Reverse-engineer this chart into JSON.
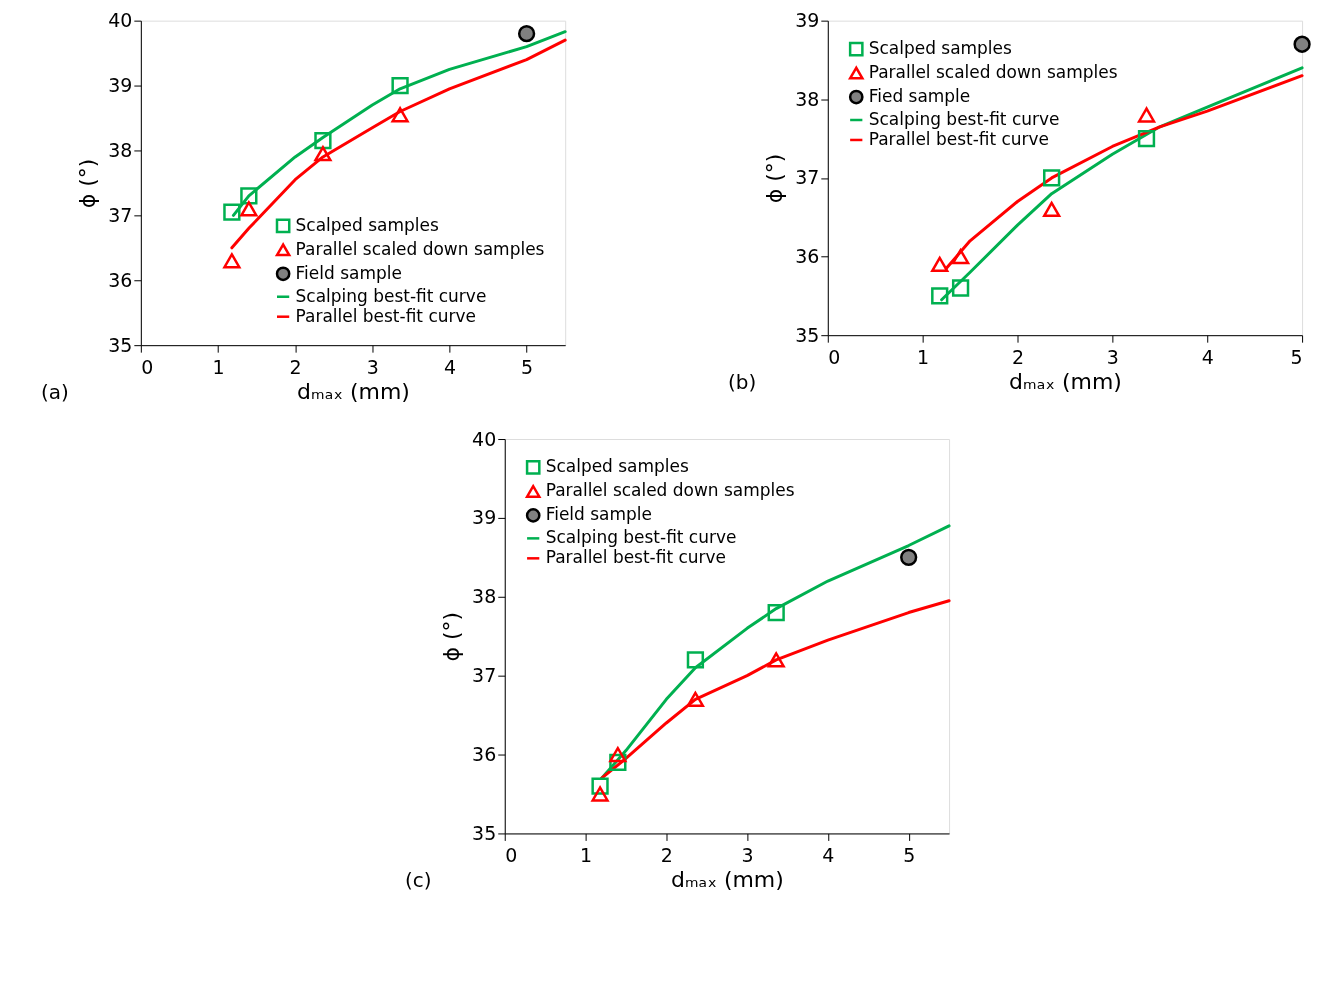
{
  "chart_data": [
    {
      "type": "scatter",
      "xlabel": "dₘₐₓ (mm)",
      "ylabel": "ϕ (°)",
      "xlim": [
        0,
        5.5
      ],
      "xticks": [
        0,
        1,
        2,
        3,
        4,
        5
      ],
      "ylim": [
        35,
        40
      ],
      "yticks": [
        35,
        36,
        37,
        38,
        39,
        40
      ],
      "grid": false,
      "legend": "bottom right",
      "annotations": [
        "(a)"
      ],
      "series": [
        {
          "name": "Scalped samples",
          "marker": "square",
          "color": "#00b050",
          "x": [
            1.18,
            1.4,
            2.36,
            3.36
          ],
          "values": [
            37.05,
            37.3,
            38.15,
            39.0
          ]
        },
        {
          "name": "Parallel scaled down samples",
          "marker": "triangle",
          "color": "#ff0000",
          "x": [
            1.18,
            1.4,
            2.36,
            3.36
          ],
          "values": [
            36.3,
            37.1,
            37.95,
            38.55
          ]
        },
        {
          "name": "Field sample",
          "marker": "circle",
          "color": "#808080",
          "x": [
            5
          ],
          "values": [
            39.8
          ]
        },
        {
          "name": "Scalping best-fit curve",
          "type": "line",
          "line_style": "solid",
          "color": "#00b050",
          "x": [
            1.2,
            1.4,
            2,
            2.36,
            3,
            3.36,
            4,
            5,
            5.5
          ],
          "values": [
            37.0,
            37.3,
            37.9,
            38.2,
            38.7,
            38.95,
            39.25,
            39.6,
            39.83
          ]
        },
        {
          "name": "Parallel best-fit curve",
          "type": "line",
          "line_style": "solid",
          "color": "#ff0000",
          "x": [
            1.18,
            1.4,
            2,
            2.36,
            3,
            3.36,
            4,
            5,
            5.5
          ],
          "values": [
            36.5,
            36.8,
            37.55,
            37.9,
            38.35,
            38.6,
            38.95,
            39.4,
            39.7
          ]
        }
      ]
    },
    {
      "type": "scatter",
      "xlabel": "dₘₐₓ (mm)",
      "ylabel": "ϕ (°)",
      "xlim": [
        0,
        5
      ],
      "xticks": [
        0,
        1,
        2,
        3,
        4,
        5
      ],
      "ylim": [
        35,
        39
      ],
      "yticks": [
        35,
        36,
        37,
        38,
        39
      ],
      "grid": false,
      "legend": "top left",
      "annotations": [
        "(b)"
      ],
      "series": [
        {
          "name": "Scalped samples",
          "marker": "square",
          "color": "#00b050",
          "x": [
            1.18,
            1.4,
            2.36,
            3.36
          ],
          "values": [
            35.5,
            35.6,
            37.0,
            37.5
          ]
        },
        {
          "name": "Parallel scaled down samples",
          "marker": "triangle",
          "color": "#ff0000",
          "x": [
            1.18,
            1.4,
            2.36,
            3.36
          ],
          "values": [
            35.9,
            36.0,
            36.6,
            37.8
          ]
        },
        {
          "name": "Fied sample",
          "marker": "circle",
          "color": "#808080",
          "x": [
            5
          ],
          "values": [
            38.7
          ]
        },
        {
          "name": "Scalping best-fit curve",
          "type": "line",
          "line_style": "solid",
          "color": "#00b050",
          "x": [
            1.2,
            1.5,
            2,
            2.36,
            3,
            3.5,
            4,
            5
          ],
          "values": [
            35.45,
            35.8,
            36.4,
            36.8,
            37.3,
            37.65,
            37.9,
            38.4
          ]
        },
        {
          "name": "Parallel best-fit curve",
          "type": "line",
          "line_style": "solid",
          "color": "#ff0000",
          "x": [
            1.25,
            1.5,
            2,
            2.36,
            3,
            3.5,
            4,
            5
          ],
          "values": [
            35.85,
            36.2,
            36.7,
            37.0,
            37.4,
            37.65,
            37.85,
            38.3
          ]
        }
      ]
    },
    {
      "type": "scatter",
      "xlabel": "dₘₐₓ (mm)",
      "ylabel": "ϕ (°)",
      "xlim": [
        0,
        5.5
      ],
      "xticks": [
        0,
        1,
        2,
        3,
        4,
        5
      ],
      "ylim": [
        35,
        40
      ],
      "yticks": [
        35,
        36,
        37,
        38,
        39,
        40
      ],
      "grid": false,
      "legend": "top left",
      "annotations": [
        "(c)"
      ],
      "series": [
        {
          "name": "Scalped samples",
          "marker": "square",
          "color": "#00b050",
          "x": [
            1.18,
            1.4,
            2.36,
            3.36
          ],
          "values": [
            35.6,
            35.9,
            37.2,
            37.8
          ]
        },
        {
          "name": "Parallel scaled down samples",
          "marker": "triangle",
          "color": "#ff0000",
          "x": [
            1.18,
            1.4,
            2.36,
            3.36
          ],
          "values": [
            35.5,
            36.0,
            36.7,
            37.2
          ]
        },
        {
          "name": "Field sample",
          "marker": "circle",
          "color": "#808080",
          "x": [
            5
          ],
          "values": [
            38.5
          ]
        },
        {
          "name": "Scalping best-fit curve",
          "type": "line",
          "line_style": "solid",
          "color": "#00b050",
          "x": [
            1.2,
            1.5,
            2,
            2.36,
            3,
            3.36,
            4,
            5,
            5.5
          ],
          "values": [
            35.7,
            36.05,
            36.7,
            37.1,
            37.6,
            37.85,
            38.2,
            38.65,
            38.9
          ]
        },
        {
          "name": "Parallel best-fit curve",
          "type": "line",
          "line_style": "solid",
          "color": "#ff0000",
          "x": [
            1.2,
            1.5,
            2,
            2.36,
            3,
            3.36,
            4,
            5,
            5.5
          ],
          "values": [
            35.7,
            35.95,
            36.4,
            36.7,
            37.0,
            37.2,
            37.45,
            37.8,
            37.95
          ]
        }
      ]
    }
  ]
}
